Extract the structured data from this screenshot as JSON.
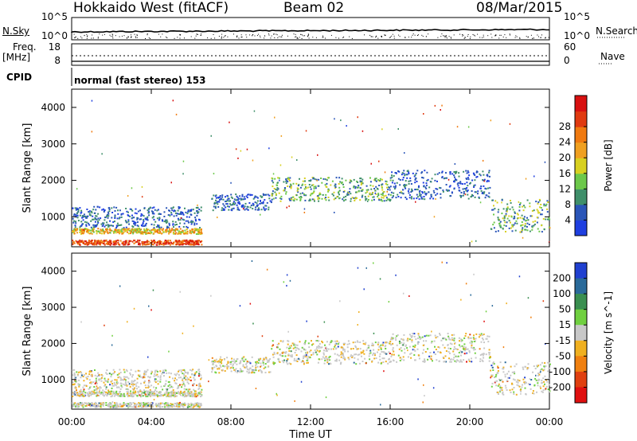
{
  "header": {
    "station": "Hokkaido West (fitACF)",
    "beam": "Beam 02",
    "date": "08/Mar/2015"
  },
  "noise_panel": {
    "left_label": "N.Sky",
    "right_label": "N.Search",
    "left_ticks": [
      "10^5",
      "10^0"
    ],
    "right_ticks": [
      "10^5",
      "10^0"
    ]
  },
  "freq_panel": {
    "left_label_1": "Freq.",
    "left_label_2": "[MHz]",
    "left_ticks": [
      "18",
      "8"
    ],
    "right_label": "Nave",
    "right_ticks": [
      "60",
      "0"
    ]
  },
  "cpid_panel": {
    "label": "CPID",
    "mode_text": "normal (fast stereo) 153"
  },
  "time_axis": {
    "label": "Time UT",
    "ticks": [
      "00:00",
      "04:00",
      "08:00",
      "12:00",
      "16:00",
      "20:00",
      "00:00"
    ]
  },
  "chart_data": [
    {
      "type": "heatmap",
      "title": "",
      "xlabel": "",
      "ylabel": "Slant Range [km]",
      "xlim_hours": [
        0,
        24
      ],
      "ylim_km": [
        180,
        4500
      ],
      "yticks": [
        "1000",
        "2000",
        "3000",
        "4000"
      ],
      "colorbar": {
        "label": "Power [dB]",
        "ticks": [
          "4",
          "8",
          "12",
          "16",
          "20",
          "24",
          "28"
        ],
        "colors": [
          "#1f3fe0",
          "#2a55b8",
          "#3f8f6a",
          "#6cc84a",
          "#d8d020",
          "#f0a020",
          "#f07a10",
          "#e03a10",
          "#d81010"
        ]
      },
      "scatter_bands": [
        {
          "t": [
            0,
            6.5
          ],
          "r": [
            720,
            1300
          ],
          "level": "weak"
        },
        {
          "t": [
            0,
            6.5
          ],
          "r": [
            550,
            700
          ],
          "level": "strong"
        },
        {
          "t": [
            0,
            6.5
          ],
          "r": [
            250,
            380
          ],
          "level": "very_strong"
        },
        {
          "t": [
            7,
            10
          ],
          "r": [
            1200,
            1650
          ],
          "level": "weak"
        },
        {
          "t": [
            10,
            16
          ],
          "r": [
            1450,
            2100
          ],
          "level": "medium"
        },
        {
          "t": [
            16,
            21
          ],
          "r": [
            1500,
            2300
          ],
          "level": "weak"
        },
        {
          "t": [
            21,
            24
          ],
          "r": [
            600,
            1500
          ],
          "level": "medium"
        }
      ]
    },
    {
      "type": "heatmap",
      "title": "",
      "xlabel": "Time UT",
      "ylabel": "Slant Range [km]",
      "xlim_hours": [
        0,
        24
      ],
      "ylim_km": [
        180,
        4500
      ],
      "yticks": [
        "1000",
        "2000",
        "3000",
        "4000"
      ],
      "colorbar": {
        "label": "Velocity [m s^-1]",
        "ticks": [
          "200",
          "100",
          "50",
          "15",
          "-15",
          "-50",
          "-100",
          "-200"
        ],
        "colors": [
          "#2040d0",
          "#2a6a9a",
          "#3a8f50",
          "#70d040",
          "#c8c8c8",
          "#f0b020",
          "#f08010",
          "#e04010",
          "#e01010"
        ]
      }
    }
  ]
}
